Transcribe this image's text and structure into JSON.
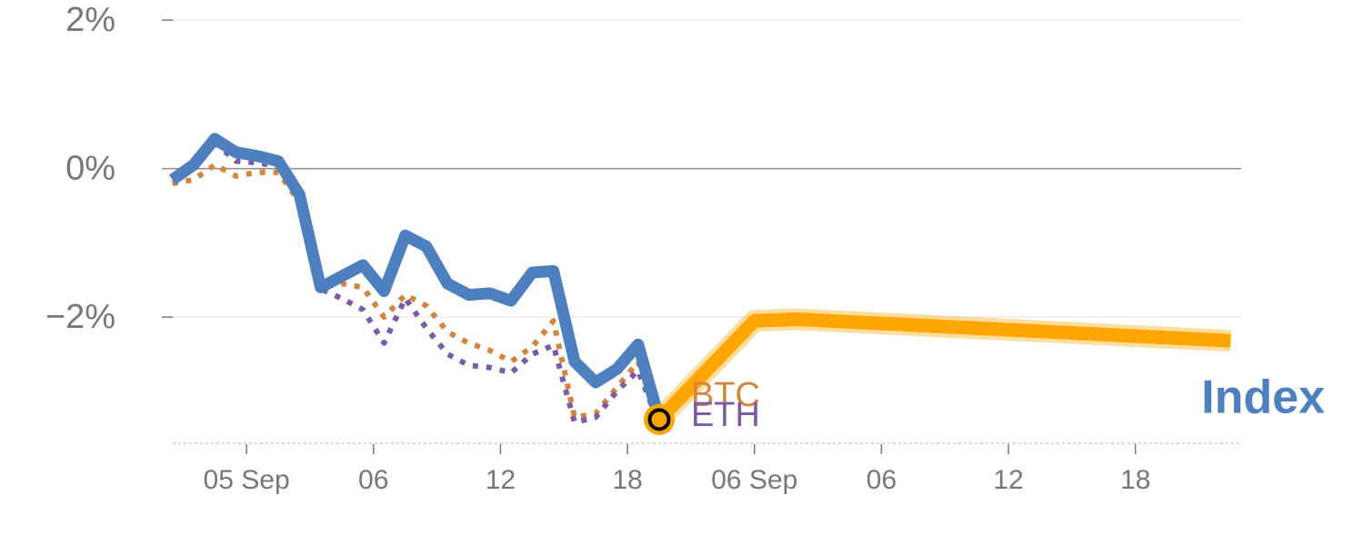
{
  "chart_data": {
    "type": "line",
    "y_unit": "%",
    "ylim": [
      -3.7,
      2.1
    ],
    "y_ticks": [
      {
        "value": 2,
        "label": "2%"
      },
      {
        "value": 0,
        "label": "0%"
      },
      {
        "value": -2,
        "label": "−2%"
      }
    ],
    "x_ticks": [
      {
        "x": 3.5,
        "label": "05 Sep"
      },
      {
        "x": 9.5,
        "label": "06"
      },
      {
        "x": 15.5,
        "label": "12"
      },
      {
        "x": 21.5,
        "label": "18"
      },
      {
        "x": 27.5,
        "label": "06 Sep"
      },
      {
        "x": 33.5,
        "label": "06"
      },
      {
        "x": 39.5,
        "label": "12"
      },
      {
        "x": 45.5,
        "label": "18"
      }
    ],
    "xlim": [
      -0.5,
      50.5
    ],
    "grid": true,
    "series": [
      {
        "name": "Index",
        "color": "#4e7fbf",
        "style": "solid",
        "x": [
          0,
          1,
          2,
          3,
          4,
          5,
          6,
          7,
          8,
          9,
          10,
          11,
          12,
          13,
          14,
          15,
          16,
          17,
          18,
          19,
          20,
          21,
          22,
          23
        ],
        "values": [
          -0.15,
          0.05,
          0.4,
          0.22,
          0.17,
          0.1,
          -0.35,
          -1.6,
          -1.45,
          -1.3,
          -1.65,
          -0.9,
          -1.05,
          -1.55,
          -1.7,
          -1.68,
          -1.78,
          -1.4,
          -1.38,
          -2.6,
          -2.88,
          -2.7,
          -2.37,
          -3.38
        ]
      },
      {
        "name": "BTC",
        "color": "#d3843f",
        "style": "dotted",
        "x": [
          0,
          1,
          2,
          3,
          4,
          5,
          6,
          7,
          8,
          9,
          10,
          11,
          12,
          13,
          14,
          15,
          16,
          17,
          18,
          19,
          20,
          21,
          22,
          23
        ],
        "values": [
          -0.2,
          -0.15,
          0.05,
          -0.1,
          -0.05,
          -0.05,
          -0.45,
          -1.6,
          -1.55,
          -1.6,
          -2.0,
          -1.7,
          -1.85,
          -2.2,
          -2.35,
          -2.45,
          -2.6,
          -2.4,
          -2.05,
          -3.35,
          -3.3,
          -2.95,
          -2.6,
          -3.32
        ]
      },
      {
        "name": "ETH",
        "color": "#7b5ba6",
        "style": "dotted",
        "x": [
          0,
          1,
          2,
          3,
          4,
          5,
          6,
          7,
          8,
          9,
          10,
          11,
          12,
          13,
          14,
          15,
          16,
          17,
          18,
          19,
          20,
          21,
          22,
          23
        ],
        "values": [
          -0.1,
          0.05,
          0.35,
          0.1,
          0.08,
          0.03,
          -0.4,
          -1.62,
          -1.75,
          -1.9,
          -2.35,
          -1.75,
          -2.15,
          -2.5,
          -2.65,
          -2.68,
          -2.75,
          -2.5,
          -2.38,
          -3.42,
          -3.35,
          -3.0,
          -2.72,
          -3.45
        ]
      },
      {
        "name": "Index",
        "color": "#ffa500",
        "style": "highlight",
        "x": [
          23,
          27.5,
          29.5,
          50
        ],
        "values": [
          -3.38,
          -2.05,
          -2.03,
          -2.32
        ]
      }
    ],
    "marker": {
      "x": 23,
      "value": -3.38,
      "fill": "#ffa500",
      "ring": "#000000"
    },
    "direct_labels": [
      {
        "text": "BTC",
        "color": "#d3843f",
        "x": 24.5,
        "value": -3.05
      },
      {
        "text": "ETH",
        "color": "#7b5ba6",
        "x": 24.5,
        "value": -3.32
      },
      {
        "text": "Index",
        "color": "#4e7fbf",
        "x": 50.8,
        "value": -3.08
      }
    ],
    "colors": {
      "grid": "#e6e6e6",
      "zero_line": "#8a8a8a",
      "axis_baseline": "#cccccc",
      "tick_text": "#777777"
    }
  }
}
